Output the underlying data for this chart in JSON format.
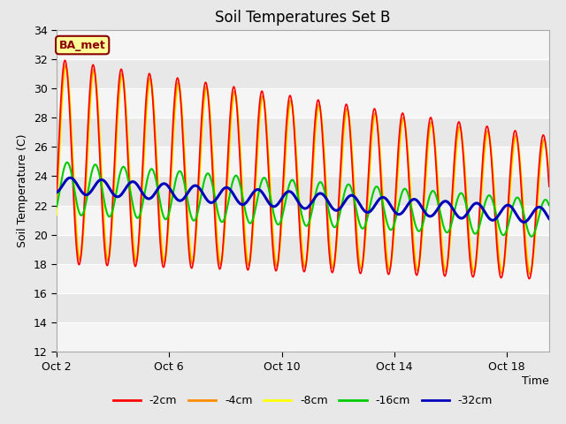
{
  "title": "Soil Temperatures Set B",
  "xlabel": "Time",
  "ylabel": "Soil Temperature (C)",
  "ylim": [
    12,
    34
  ],
  "yticks": [
    12,
    14,
    16,
    18,
    20,
    22,
    24,
    26,
    28,
    30,
    32,
    34
  ],
  "bg_color": "#e8e8e8",
  "annotation_text": "BA_met",
  "annotation_bbox": {
    "facecolor": "#ffff99",
    "edgecolor": "#8b0000",
    "boxstyle": "round,pad=0.3"
  },
  "annotation_color": "#8b0000",
  "series": {
    "depth_2cm": {
      "color": "#ff0000",
      "lw": 1.2,
      "label": "-2cm"
    },
    "depth_4cm": {
      "color": "#ff8c00",
      "lw": 1.2,
      "label": "-4cm"
    },
    "depth_8cm": {
      "color": "#ffff00",
      "lw": 1.2,
      "label": "-8cm"
    },
    "depth_16cm": {
      "color": "#00cc00",
      "lw": 1.5,
      "label": "-16cm"
    },
    "depth_32cm": {
      "color": "#0000bb",
      "lw": 2.2,
      "label": "-32cm"
    }
  },
  "x_tick_positions": [
    0,
    4,
    8,
    12,
    16
  ],
  "x_tick_labels": [
    "Oct 2",
    "Oct 6",
    "Oct 10",
    "Oct 14",
    "Oct 18"
  ],
  "total_days": 17.5,
  "n_points": 1000,
  "figsize": [
    6.4,
    4.8
  ],
  "dpi": 100
}
